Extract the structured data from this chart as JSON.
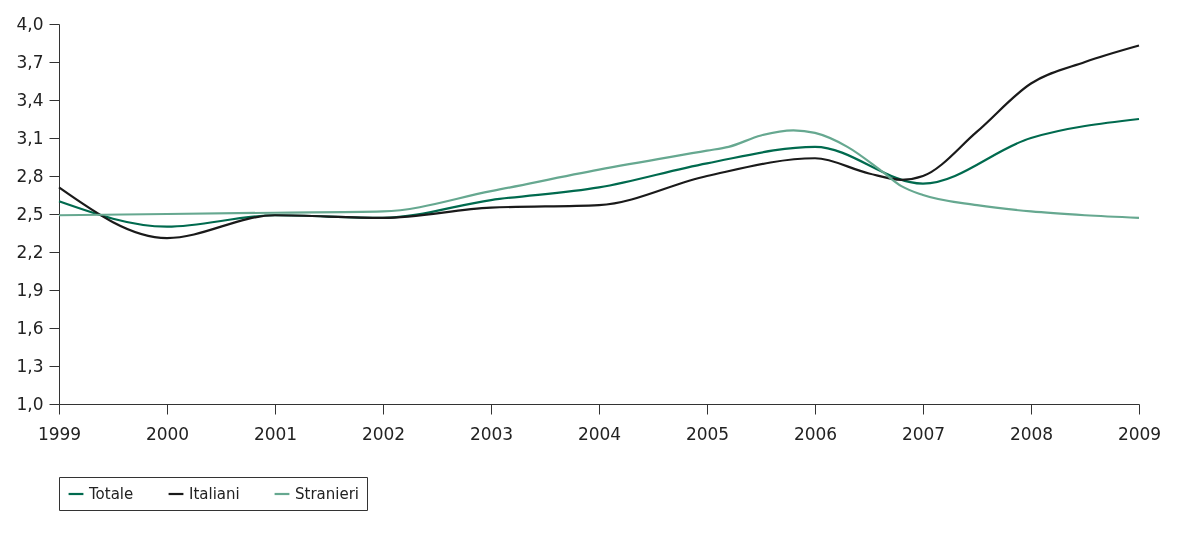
{
  "chart_data": {
    "type": "line",
    "xlim": [
      1999,
      2009
    ],
    "xticks": [
      1999,
      2000,
      2001,
      2002,
      2003,
      2004,
      2005,
      2006,
      2007,
      2008,
      2009
    ],
    "ylim": [
      1.0,
      4.0
    ],
    "yticks": [
      {
        "value": 1.0,
        "label": "1,0"
      },
      {
        "value": 1.3,
        "label": "1,3"
      },
      {
        "value": 1.6,
        "label": "1,6"
      },
      {
        "value": 1.9,
        "label": "1,9"
      },
      {
        "value": 2.2,
        "label": "2,2"
      },
      {
        "value": 2.5,
        "label": "2,5"
      },
      {
        "value": 2.8,
        "label": "2,8"
      },
      {
        "value": 3.1,
        "label": "3,1"
      },
      {
        "value": 3.4,
        "label": "3,4"
      },
      {
        "value": 3.7,
        "label": "3,7"
      },
      {
        "value": 4.0,
        "label": "4,0"
      }
    ],
    "grid": false,
    "legend": "bottom",
    "marker": "none",
    "line_style": "solid",
    "series": [
      {
        "name": "Totale",
        "color": "#006a4e",
        "x": [
          1999,
          2000,
          2001,
          2002,
          2003,
          2004,
          2005,
          2006,
          2007,
          2008,
          2009
        ],
        "values": [
          2.6,
          2.4,
          2.49,
          2.47,
          2.61,
          2.71,
          2.9,
          3.03,
          2.74,
          3.1,
          3.25
        ]
      },
      {
        "name": "Italiani",
        "color": "#1a1a1a",
        "x": [
          1999,
          2000,
          2001,
          2002,
          2003,
          2004,
          2005,
          2006,
          2006.5,
          2006.8,
          2007,
          2007.5,
          2008,
          2008.5,
          2009
        ],
        "values": [
          2.71,
          2.31,
          2.49,
          2.47,
          2.55,
          2.57,
          2.8,
          2.94,
          2.82,
          2.77,
          2.8,
          3.15,
          3.53,
          3.7,
          3.83
        ]
      },
      {
        "name": "Stranieri",
        "color": "#66a890",
        "x": [
          1999,
          2000,
          2001,
          2002,
          2003,
          2004,
          2005,
          2005.2,
          2005.5,
          2005.8,
          2006,
          2006.3,
          2006.6,
          2006.8,
          2007,
          2007.5,
          2008,
          2008.5,
          2009
        ],
        "values": [
          2.49,
          2.5,
          2.51,
          2.52,
          2.68,
          2.85,
          3.0,
          3.03,
          3.12,
          3.16,
          3.14,
          3.03,
          2.85,
          2.72,
          2.65,
          2.57,
          2.52,
          2.49,
          2.47
        ]
      }
    ]
  }
}
